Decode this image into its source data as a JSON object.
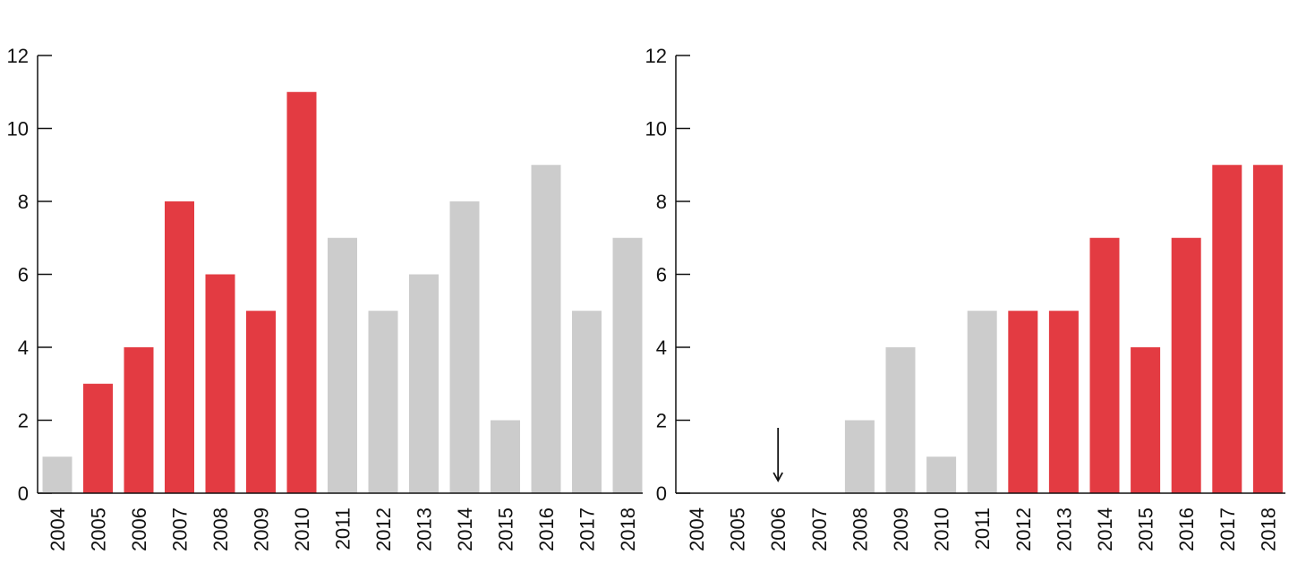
{
  "colors": {
    "highlight": "#e33b42",
    "muted": "#cccccc",
    "axis": "#111111"
  },
  "chart_data": [
    {
      "type": "bar",
      "categories": [
        "2004",
        "2005",
        "2006",
        "2007",
        "2008",
        "2009",
        "2010",
        "2011",
        "2012",
        "2013",
        "2014",
        "2015",
        "2016",
        "2017",
        "2018"
      ],
      "values": [
        1,
        3,
        4,
        8,
        6,
        5,
        11,
        7,
        5,
        6,
        8,
        2,
        9,
        5,
        7
      ],
      "highlighted": [
        false,
        true,
        true,
        true,
        true,
        true,
        true,
        false,
        false,
        false,
        false,
        false,
        false,
        false,
        false
      ],
      "yticks": [
        0,
        2,
        4,
        6,
        8,
        10,
        12
      ],
      "ylim": [
        0,
        12
      ],
      "grid": false,
      "title": "",
      "xlabel": "",
      "ylabel": ""
    },
    {
      "type": "bar",
      "categories": [
        "2004",
        "2005",
        "2006",
        "2007",
        "2008",
        "2009",
        "2010",
        "2011",
        "2012",
        "2013",
        "2014",
        "2015",
        "2016",
        "2017",
        "2018"
      ],
      "values": [
        0,
        0,
        0,
        0,
        2,
        4,
        1,
        5,
        5,
        5,
        7,
        4,
        7,
        9,
        9
      ],
      "highlighted": [
        false,
        false,
        false,
        false,
        false,
        false,
        false,
        false,
        true,
        true,
        true,
        true,
        true,
        true,
        true
      ],
      "yticks": [
        0,
        2,
        4,
        6,
        8,
        10,
        12
      ],
      "ylim": [
        0,
        12
      ],
      "grid": false,
      "annotation_arrow_category": "2006",
      "title": "",
      "xlabel": "",
      "ylabel": ""
    }
  ]
}
